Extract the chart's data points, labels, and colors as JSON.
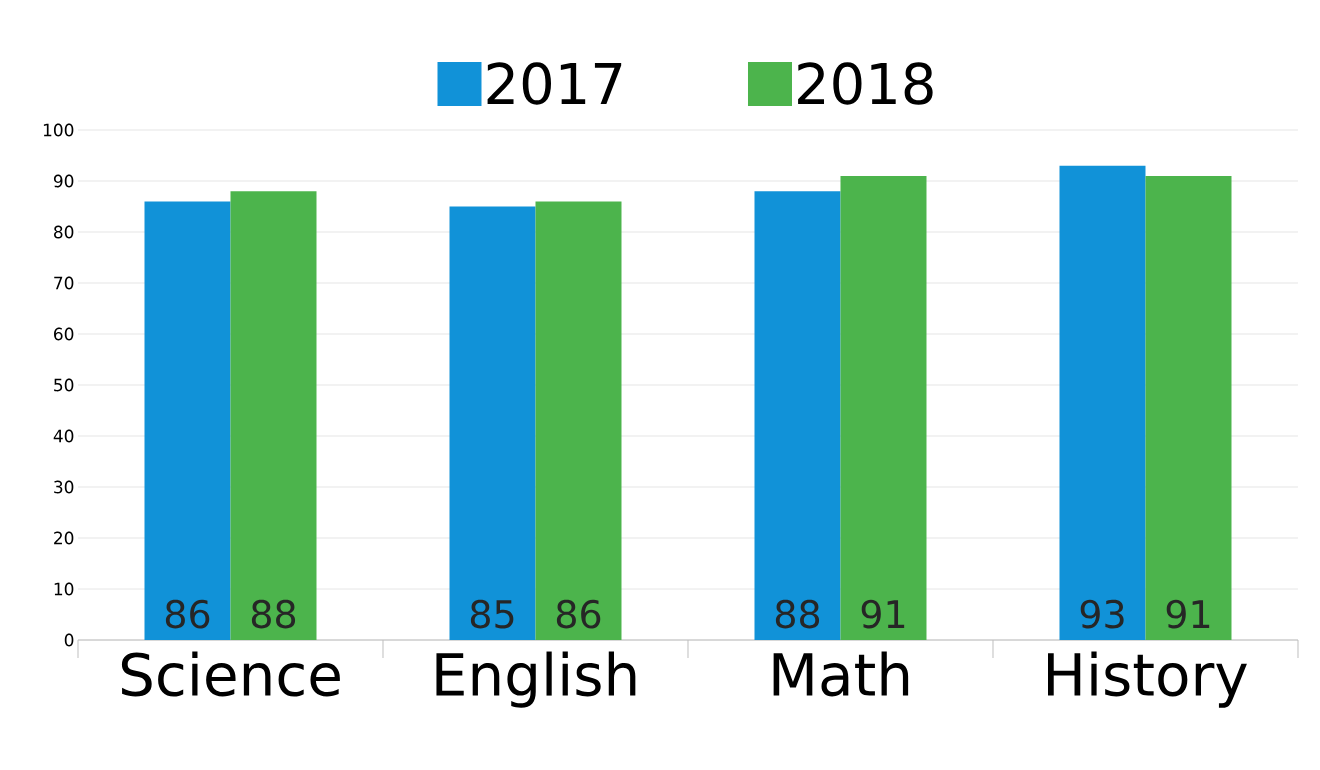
{
  "chart_data": {
    "type": "bar",
    "categories": [
      "Science",
      "English",
      "Math",
      "History"
    ],
    "series": [
      {
        "name": "2017",
        "color": "#1192d8",
        "values": [
          86,
          85,
          88,
          93
        ]
      },
      {
        "name": "2018",
        "color": "#4cb44c",
        "values": [
          88,
          86,
          91,
          91
        ]
      }
    ],
    "ylim": [
      0,
      100
    ],
    "yticks": [
      0,
      10,
      20,
      30,
      40,
      50,
      60,
      70,
      80,
      90,
      100
    ],
    "grid": "y",
    "legend": "top",
    "data_labels": true
  }
}
